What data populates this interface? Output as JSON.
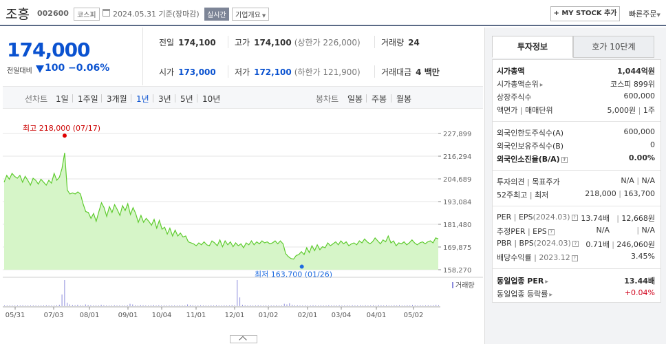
{
  "header": {
    "stock_name": "조흥",
    "stock_code": "002600",
    "market": "코스피",
    "date": "2024.05.31 기준(장마감)",
    "realtime": "실시간",
    "company_overview": "기업개요",
    "mystock_button": "+ MY STOCK 추가",
    "quick_order": "빠른주문"
  },
  "quote": {
    "price": "174,000",
    "change_label": "전일대비",
    "change_amount": "100",
    "change_rate": "−0.06%",
    "prev_close_label": "전일",
    "prev_close": "174,100",
    "high_label": "고가",
    "high": "174,100",
    "upper_limit": "(상한가 226,000)",
    "volume_label": "거래량",
    "volume": "24",
    "open_label": "시가",
    "open": "173,000",
    "low_label": "저가",
    "low": "172,100",
    "lower_limit": "(하한가 121,900)",
    "amount_label": "거래대금",
    "amount": "4 백만"
  },
  "period_bar": {
    "line_label": "선차트",
    "line_items": [
      "1일",
      "1주일",
      "3개월",
      "1년",
      "3년",
      "5년",
      "10년"
    ],
    "active": "1년",
    "candle_label": "봉차트",
    "candle_items": [
      "일봉",
      "주봉",
      "월봉"
    ]
  },
  "chart_data": {
    "type": "area",
    "y_ticks": [
      "227,899",
      "216,294",
      "204,689",
      "193,084",
      "181,480",
      "169,875",
      "158,270"
    ],
    "ylim": [
      158270,
      227899
    ],
    "x_ticks": [
      "05/31",
      "07/03",
      "08/01",
      "09/01",
      "10/04",
      "11/01",
      "12/01",
      "01/02",
      "02/01",
      "03/04",
      "04/01",
      "05/02"
    ],
    "high_annotation": "최고 218,000 (07/17)",
    "low_annotation": "최저 163,700 (01/26)",
    "high_value": 218000,
    "low_value": 163700,
    "volume_label": "거래량",
    "series": [
      {
        "values": [
          203000,
          206500,
          204500,
          207500,
          206000,
          205000,
          206500,
          203000,
          206000,
          204000,
          201500,
          205000,
          204000,
          202000,
          204500,
          203000,
          201500,
          204000,
          202500,
          207500,
          204000,
          205500,
          210000,
          218000,
          199000,
          197000,
          197500,
          197000,
          198000,
          197000,
          192000,
          188000,
          187500,
          184500,
          187000,
          183000,
          188000,
          192500,
          190000,
          185500,
          190500,
          187500,
          191500,
          189000,
          186000,
          191000,
          188500,
          192000,
          186500,
          190000,
          187000,
          182500,
          186000,
          182500,
          184500,
          183000,
          181000,
          184000,
          179500,
          183500,
          179000,
          180000,
          176500,
          179500,
          175500,
          178500,
          175500,
          177000,
          175000,
          175500,
          172500,
          172000,
          171500,
          170500,
          172000,
          171000,
          172500,
          171000,
          170500,
          173000,
          172000,
          170500,
          173500,
          170000,
          173000,
          171000,
          172500,
          170000,
          172000,
          170500,
          171500,
          169500,
          172000,
          171000,
          173000,
          171000,
          172500,
          171500,
          173000,
          172000,
          172500,
          171500,
          172000,
          173000,
          171500,
          173000,
          171500,
          166500,
          165000,
          164000,
          163700,
          165500,
          166000,
          167500,
          166000,
          169500,
          167000,
          170500,
          168000,
          171000,
          168500,
          170000,
          169500,
          172000,
          170500,
          171500,
          172500,
          171000,
          173000,
          171500,
          172500,
          170500,
          171500,
          172000,
          171000,
          173000,
          172000,
          174000,
          172500,
          171500,
          172500,
          174500,
          173000,
          171500,
          173500,
          172500,
          175500,
          172000,
          173000,
          170500,
          172000,
          171500,
          172500,
          171000,
          172000,
          173500,
          172000,
          171000,
          172000,
          172500,
          171500,
          172500,
          173000,
          172000,
          174500,
          174000
        ]
      },
      {
        "name": "거래량",
        "values": [
          1,
          1,
          2,
          1,
          1,
          2,
          1,
          3,
          1,
          1,
          2,
          1,
          1,
          2,
          1,
          1,
          3,
          1,
          2,
          2,
          3,
          5,
          40,
          90,
          12,
          6,
          4,
          3,
          5,
          3,
          2,
          6,
          4,
          3,
          2,
          3,
          2,
          5,
          3,
          2,
          2,
          2,
          3,
          2,
          1,
          2,
          2,
          3,
          8,
          6,
          3,
          2,
          4,
          3,
          2,
          2,
          3,
          4,
          2,
          3,
          2,
          3,
          2,
          2,
          1,
          2,
          2,
          3,
          2,
          2,
          6,
          4,
          3,
          2,
          2,
          3,
          2,
          2,
          2,
          3,
          2,
          3,
          2,
          2,
          3,
          2,
          2,
          4,
          3,
          90,
          30,
          5,
          3,
          2,
          3,
          2,
          2,
          3,
          2,
          2,
          3,
          2,
          2,
          2,
          3,
          2,
          2,
          8,
          6,
          10,
          5,
          3,
          3,
          2,
          2,
          3,
          2,
          2,
          3,
          2,
          2,
          3,
          2,
          2,
          3,
          2,
          3,
          2,
          3,
          2,
          2,
          3,
          2,
          3,
          2,
          2,
          3,
          2,
          3,
          2,
          2,
          3,
          2,
          4,
          3,
          2,
          3,
          2,
          2,
          3,
          2,
          3,
          2,
          2,
          3,
          2,
          4,
          3,
          2,
          3,
          2,
          2,
          3,
          2,
          3,
          5,
          3
        ]
      }
    ]
  },
  "investment_info": {
    "tab_active": "투자정보",
    "tab_inactive": "호가 10단계",
    "market_cap_label": "시가총액",
    "market_cap": "1,044억원",
    "market_cap_rank_label": "시가총액순위",
    "market_cap_rank": "코스피 899위",
    "shares_label": "상장주식수",
    "shares": "600,000",
    "face_value_label": "액면가",
    "trade_unit_label": "매매단위",
    "face_value": "5,000원",
    "trade_unit": "1주",
    "foreign_limit_label": "외국인한도주식수(A)",
    "foreign_limit": "600,000",
    "foreign_hold_label": "외국인보유주식수(B)",
    "foreign_hold": "0",
    "foreign_ratio_label": "외국인소진율(B/A)",
    "foreign_ratio": "0.00%",
    "opinion_label": "투자의견",
    "target_label": "목표주가",
    "opinion": "N/A",
    "target": "N/A",
    "wk52_high_label": "52주최고",
    "wk52_low_label": "최저",
    "wk52_high": "218,000",
    "wk52_low": "163,700",
    "per_label": "PER",
    "eps_label": "EPS",
    "eps_period": "(2024.03)",
    "per": "13.74배",
    "eps": "12,668원",
    "est_per_label": "추정PER",
    "est_eps_label": "EPS",
    "est_per": "N/A",
    "est_eps": "N/A",
    "pbr_label": "PBR",
    "bps_label": "BPS",
    "bps_period": "(2024.03)",
    "pbr": "0.71배",
    "bps": "246,060원",
    "dividend_label": "배당수익률",
    "dividend_period": "2023.12",
    "dividend": "3.45%",
    "sector_per_label": "동일업종 PER",
    "sector_per": "13.44배",
    "sector_change_label": "동일업종 등락률",
    "sector_change": "+0.04%"
  }
}
